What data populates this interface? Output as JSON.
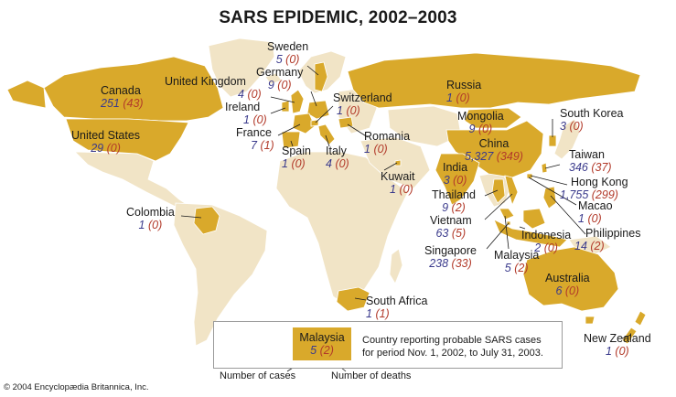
{
  "title": "SARS EPIDEMIC, 2002–2003",
  "colors": {
    "reporting": "#d9a92b",
    "land": "#f1e4c6",
    "ocean": "#ffffff",
    "cases": "#3a3a8c",
    "deaths": "#b23a2a"
  },
  "countries": [
    {
      "name": "Sweden",
      "cases": "5",
      "deaths": "(0)"
    },
    {
      "name": "Germany",
      "cases": "9",
      "deaths": "(0)"
    },
    {
      "name": "United Kingdom",
      "cases": "4",
      "deaths": "(0)"
    },
    {
      "name": "Canada",
      "cases": "251",
      "deaths": "(43)"
    },
    {
      "name": "Ireland",
      "cases": "1",
      "deaths": "(0)"
    },
    {
      "name": "Switzerland",
      "cases": "1",
      "deaths": "(0)"
    },
    {
      "name": "France",
      "cases": "7",
      "deaths": "(1)"
    },
    {
      "name": "United States",
      "cases": "29",
      "deaths": "(0)"
    },
    {
      "name": "Spain",
      "cases": "1",
      "deaths": "(0)"
    },
    {
      "name": "Italy",
      "cases": "4",
      "deaths": "(0)"
    },
    {
      "name": "Romania",
      "cases": "1",
      "deaths": "(0)"
    },
    {
      "name": "Russia",
      "cases": "1",
      "deaths": "(0)"
    },
    {
      "name": "Mongolia",
      "cases": "9",
      "deaths": "(0)"
    },
    {
      "name": "South Korea",
      "cases": "3",
      "deaths": "(0)"
    },
    {
      "name": "China",
      "cases": "5,327",
      "deaths": "(349)"
    },
    {
      "name": "Taiwan",
      "cases": "346",
      "deaths": "(37)"
    },
    {
      "name": "Hong Kong",
      "cases": "1,755",
      "deaths": "(299)"
    },
    {
      "name": "Macao",
      "cases": "1",
      "deaths": "(0)"
    },
    {
      "name": "Kuwait",
      "cases": "1",
      "deaths": "(0)"
    },
    {
      "name": "India",
      "cases": "3",
      "deaths": "(0)"
    },
    {
      "name": "Thailand",
      "cases": "9",
      "deaths": "(2)"
    },
    {
      "name": "Vietnam",
      "cases": "63",
      "deaths": "(5)"
    },
    {
      "name": "Philippines",
      "cases": "14",
      "deaths": "(2)"
    },
    {
      "name": "Indonesia",
      "cases": "2",
      "deaths": "(0)"
    },
    {
      "name": "Singapore",
      "cases": "238",
      "deaths": "(33)"
    },
    {
      "name": "Malaysia",
      "cases": "5",
      "deaths": "(2)"
    },
    {
      "name": "Colombia",
      "cases": "1",
      "deaths": "(0)"
    },
    {
      "name": "Australia",
      "cases": "6",
      "deaths": "(0)"
    },
    {
      "name": "South Africa",
      "cases": "1",
      "deaths": "(1)"
    },
    {
      "name": "New Zealand",
      "cases": "1",
      "deaths": "(0)"
    }
  ],
  "legend": {
    "sample_name": "Malaysia",
    "sample_cases": "5",
    "sample_deaths": "(2)",
    "line1": "Country reporting probable SARS cases",
    "line2": "for period Nov. 1, 2002, to July 31, 2003.",
    "cases_caption": "Number of cases",
    "deaths_caption": "Number of deaths"
  },
  "copyright": "© 2004 Encyclopædia Britannica, Inc."
}
